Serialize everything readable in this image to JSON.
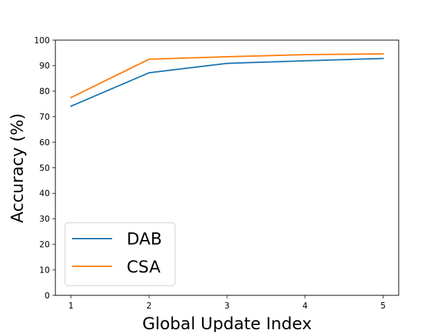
{
  "chart_data": {
    "type": "line",
    "title": "",
    "xlabel": "Global Update Index",
    "ylabel": "Accuracy (%)",
    "x": [
      1,
      2,
      3,
      4,
      5
    ],
    "xlim": [
      0.8,
      5.2
    ],
    "ylim": [
      0,
      100
    ],
    "xticks": [
      1,
      2,
      3,
      4,
      5
    ],
    "yticks": [
      0,
      10,
      20,
      30,
      40,
      50,
      60,
      70,
      80,
      90,
      100
    ],
    "grid": false,
    "legend_position": "lower-left",
    "series": [
      {
        "name": "DAB",
        "color": "#1f77b4",
        "values": [
          74.1,
          87.2,
          90.9,
          91.9,
          92.8
        ]
      },
      {
        "name": "CSA",
        "color": "#ff7f0e",
        "values": [
          77.5,
          92.5,
          93.5,
          94.3,
          94.6
        ]
      }
    ]
  }
}
